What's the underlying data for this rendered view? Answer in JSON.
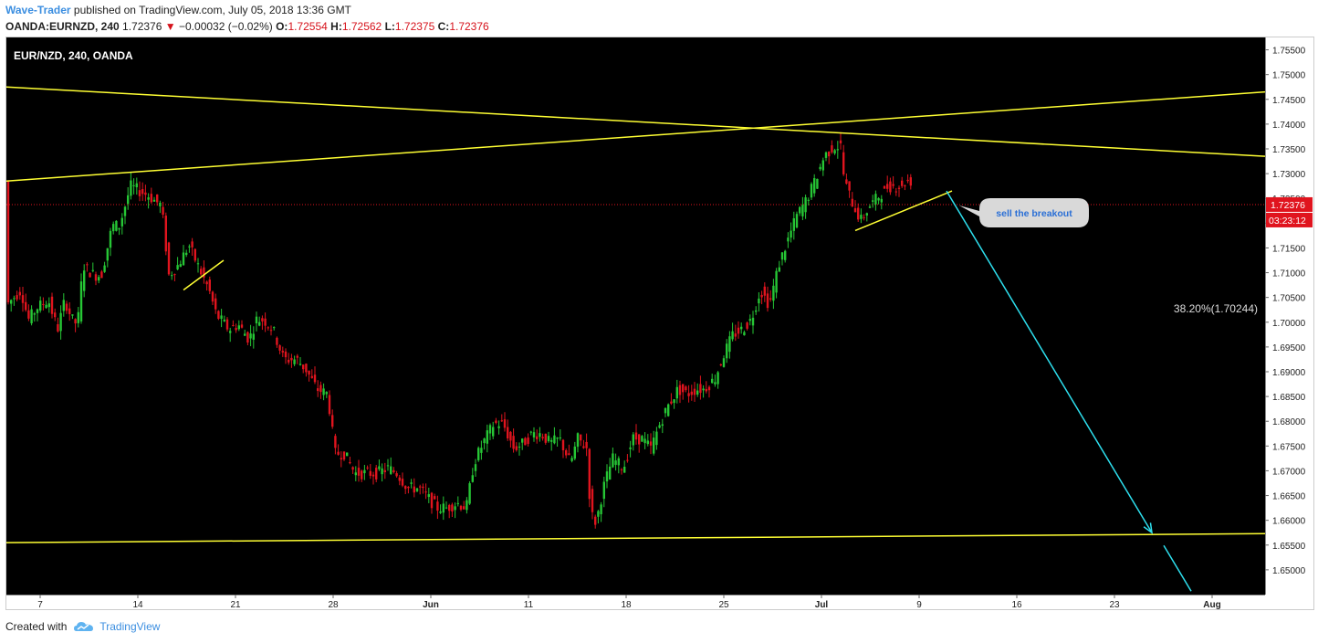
{
  "header": {
    "author": "Wave-Trader",
    "published_text": " published on TradingView.com, July 05, 2018 13:36 GMT",
    "symbol": "OANDA:EURNZD, 240",
    "price": "1.72376",
    "change": "−0.00032 (−0.02%)",
    "o_label": "O:",
    "o": "1.72554",
    "h_label": "H:",
    "h": "1.72562",
    "l_label": "L:",
    "l": "1.72375",
    "c_label": "C:",
    "c": "1.72376"
  },
  "footer": {
    "created_with": "Created with",
    "brand": "TradingView"
  },
  "colors": {
    "up": "#26c635",
    "down": "#e0141e",
    "trendline": "#ffff33",
    "arrow": "#2ee0ef",
    "background": "#000000",
    "price_label": "#e0141e"
  },
  "chart_data": {
    "type": "candlestick",
    "title": "EUR/NZD, 240, OANDA",
    "ylim": [
      1.645,
      1.7575
    ],
    "y_ticks": [
      "1.75500",
      "1.75000",
      "1.74500",
      "1.74000",
      "1.73500",
      "1.73000",
      "1.72500",
      "1.72000",
      "1.71500",
      "1.71000",
      "1.70500",
      "1.70000",
      "1.69500",
      "1.69000",
      "1.68500",
      "1.68000",
      "1.67500",
      "1.67000",
      "1.66500",
      "1.66000",
      "1.65500",
      "1.65000"
    ],
    "x_ticks": [
      "7",
      "14",
      "21",
      "28",
      "Jun",
      "11",
      "18",
      "25",
      "Jul",
      "9",
      "16",
      "23",
      "Aug"
    ],
    "last_price": "1.72376",
    "countdown": "03:23:12",
    "annotation": "sell the breakout",
    "fib_label": "38.20%(1.70244)",
    "path": [
      [
        0,
        1.7035
      ],
      [
        16,
        1.7065
      ],
      [
        24,
        1.7005
      ],
      [
        34,
        1.703
      ],
      [
        46,
        1.7045
      ],
      [
        56,
        1.6985
      ],
      [
        64,
        1.7045
      ],
      [
        72,
        1.7005
      ],
      [
        78,
        1.6995
      ],
      [
        84,
        1.7115
      ],
      [
        96,
        1.7095
      ],
      [
        104,
        1.7095
      ],
      [
        116,
        1.7195
      ],
      [
        124,
        1.7195
      ],
      [
        136,
        1.7275
      ],
      [
        146,
        1.7265
      ],
      [
        156,
        1.7255
      ],
      [
        170,
        1.7235
      ],
      [
        178,
        1.7095
      ],
      [
        188,
        1.7115
      ],
      [
        200,
        1.7155
      ],
      [
        212,
        1.7105
      ],
      [
        222,
        1.7065
      ],
      [
        230,
        1.7015
      ],
      [
        244,
        1.6985
      ],
      [
        254,
        1.6995
      ],
      [
        266,
        1.6965
      ],
      [
        274,
        1.7005
      ],
      [
        282,
        1.7005
      ],
      [
        292,
        1.6985
      ],
      [
        304,
        1.6925
      ],
      [
        318,
        1.6925
      ],
      [
        328,
        1.6905
      ],
      [
        340,
        1.6865
      ],
      [
        352,
        1.6855
      ],
      [
        360,
        1.6735
      ],
      [
        370,
        1.6735
      ],
      [
        382,
        1.6695
      ],
      [
        394,
        1.6695
      ],
      [
        406,
        1.6695
      ],
      [
        418,
        1.6705
      ],
      [
        428,
        1.6695
      ],
      [
        440,
        1.6665
      ],
      [
        452,
        1.6665
      ],
      [
        462,
        1.6645
      ],
      [
        472,
        1.6625
      ],
      [
        482,
        1.6625
      ],
      [
        494,
        1.6635
      ],
      [
        504,
        1.6625
      ],
      [
        512,
        1.6715
      ],
      [
        522,
        1.6755
      ],
      [
        534,
        1.6795
      ],
      [
        544,
        1.6795
      ],
      [
        556,
        1.6745
      ],
      [
        566,
        1.6755
      ],
      [
        576,
        1.6775
      ],
      [
        586,
        1.6775
      ],
      [
        596,
        1.6755
      ],
      [
        606,
        1.6765
      ],
      [
        618,
        1.6715
      ],
      [
        626,
        1.6765
      ],
      [
        636,
        1.6745
      ],
      [
        640,
        1.6615
      ],
      [
        646,
        1.6595
      ],
      [
        654,
        1.6665
      ],
      [
        664,
        1.6725
      ],
      [
        676,
        1.6705
      ],
      [
        686,
        1.6765
      ],
      [
        696,
        1.6765
      ],
      [
        706,
        1.6745
      ],
      [
        716,
        1.6795
      ],
      [
        726,
        1.6835
      ],
      [
        736,
        1.6865
      ],
      [
        746,
        1.6855
      ],
      [
        756,
        1.6865
      ],
      [
        764,
        1.6865
      ],
      [
        776,
        1.6885
      ],
      [
        786,
        1.6935
      ],
      [
        796,
        1.6975
      ],
      [
        806,
        1.6985
      ],
      [
        816,
        1.7005
      ],
      [
        826,
        1.7065
      ],
      [
        836,
        1.7035
      ],
      [
        846,
        1.7115
      ],
      [
        856,
        1.7165
      ],
      [
        866,
        1.7215
      ],
      [
        876,
        1.7245
      ],
      [
        886,
        1.7285
      ],
      [
        896,
        1.7335
      ],
      [
        906,
        1.7355
      ],
      [
        914,
        1.7355
      ],
      [
        918,
        1.7285
      ],
      [
        926,
        1.7245
      ],
      [
        936,
        1.7205
      ],
      [
        946,
        1.7235
      ],
      [
        956,
        1.7255
      ],
      [
        966,
        1.7275
      ],
      [
        976,
        1.7275
      ],
      [
        986,
        1.7285
      ],
      [
        994,
        1.7285
      ]
    ],
    "lines": [
      {
        "name": "upper-descending",
        "points": [
          [
            0,
            1.7475
          ],
          [
            1379,
            1.7335
          ]
        ]
      },
      {
        "name": "upper-ascending",
        "points": [
          [
            0,
            1.7285
          ],
          [
            1379,
            1.7465
          ]
        ]
      },
      {
        "name": "lower-support",
        "points": [
          [
            0,
            1.6555
          ],
          [
            1379,
            1.6573
          ]
        ]
      },
      {
        "name": "small-channel",
        "points": [
          [
            194,
            1.7065
          ],
          [
            238,
            1.7125
          ]
        ]
      },
      {
        "name": "recent-support",
        "points": [
          [
            930,
            1.7185
          ],
          [
            1036,
            1.7265
          ]
        ]
      }
    ],
    "arrow": {
      "from": [
        1030,
        1.7265
      ],
      "to": [
        1255,
        1.6575
      ],
      "extension_to": [
        1298,
        1.6457
      ]
    }
  }
}
